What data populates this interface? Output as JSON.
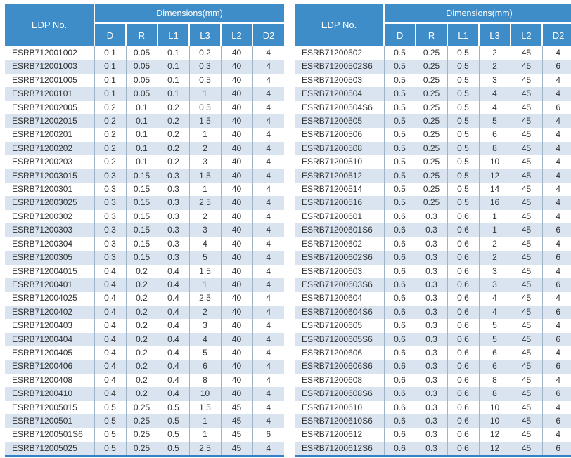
{
  "colors": {
    "header_bg": "#3E8CC8",
    "header_text": "#FFFFFF",
    "stripe": "#D9E4F0",
    "body_text": "#333333",
    "grid_line": "#9FB4C7",
    "bottom_border": "#3580C6"
  },
  "header": {
    "edp_label": "EDP No.",
    "group_label": "Dimensions(mm)",
    "sub": [
      "D",
      "R",
      "L1",
      "L3",
      "L2",
      "D2"
    ]
  },
  "tables": [
    {
      "rows": [
        [
          "ESRB712001002",
          "0.1",
          "0.05",
          "0.1",
          "0.2",
          "40",
          "4"
        ],
        [
          "ESRB712001003",
          "0.1",
          "0.05",
          "0.1",
          "0.3",
          "40",
          "4"
        ],
        [
          "ESRB712001005",
          "0.1",
          "0.05",
          "0.1",
          "0.5",
          "40",
          "4"
        ],
        [
          "ESRB71200101",
          "0.1",
          "0.05",
          "0.1",
          "1",
          "40",
          "4"
        ],
        [
          "ESRB712002005",
          "0.2",
          "0.1",
          "0.2",
          "0.5",
          "40",
          "4"
        ],
        [
          "ESRB712002015",
          "0.2",
          "0.1",
          "0.2",
          "1.5",
          "40",
          "4"
        ],
        [
          "ESRB71200201",
          "0.2",
          "0.1",
          "0.2",
          "1",
          "40",
          "4"
        ],
        [
          "ESRB71200202",
          "0.2",
          "0.1",
          "0.2",
          "2",
          "40",
          "4"
        ],
        [
          "ESRB71200203",
          "0.2",
          "0.1",
          "0.2",
          "3",
          "40",
          "4"
        ],
        [
          "ESRB712003015",
          "0.3",
          "0.15",
          "0.3",
          "1.5",
          "40",
          "4"
        ],
        [
          "ESRB71200301",
          "0.3",
          "0.15",
          "0.3",
          "1",
          "40",
          "4"
        ],
        [
          "ESRB712003025",
          "0.3",
          "0.15",
          "0.3",
          "2.5",
          "40",
          "4"
        ],
        [
          "ESRB71200302",
          "0.3",
          "0.15",
          "0.3",
          "2",
          "40",
          "4"
        ],
        [
          "ESRB71200303",
          "0.3",
          "0.15",
          "0.3",
          "3",
          "40",
          "4"
        ],
        [
          "ESRB71200304",
          "0.3",
          "0.15",
          "0.3",
          "4",
          "40",
          "4"
        ],
        [
          "ESRB71200305",
          "0.3",
          "0.15",
          "0.3",
          "5",
          "40",
          "4"
        ],
        [
          "ESRB712004015",
          "0.4",
          "0.2",
          "0.4",
          "1.5",
          "40",
          "4"
        ],
        [
          "ESRB71200401",
          "0.4",
          "0.2",
          "0.4",
          "1",
          "40",
          "4"
        ],
        [
          "ESRB712004025",
          "0.4",
          "0.2",
          "0.4",
          "2.5",
          "40",
          "4"
        ],
        [
          "ESRB71200402",
          "0.4",
          "0.2",
          "0.4",
          "2",
          "40",
          "4"
        ],
        [
          "ESRB71200403",
          "0.4",
          "0.2",
          "0.4",
          "3",
          "40",
          "4"
        ],
        [
          "ESRB71200404",
          "0.4",
          "0.2",
          "0.4",
          "4",
          "40",
          "4"
        ],
        [
          "ESRB71200405",
          "0.4",
          "0.2",
          "0.4",
          "5",
          "40",
          "4"
        ],
        [
          "ESRB71200406",
          "0.4",
          "0.2",
          "0.4",
          "6",
          "40",
          "4"
        ],
        [
          "ESRB71200408",
          "0.4",
          "0.2",
          "0.4",
          "8",
          "40",
          "4"
        ],
        [
          "ESRB71200410",
          "0.4",
          "0.2",
          "0.4",
          "10",
          "40",
          "4"
        ],
        [
          "ESRB712005015",
          "0.5",
          "0.25",
          "0.5",
          "1.5",
          "45",
          "4"
        ],
        [
          "ESRB71200501",
          "0.5",
          "0.25",
          "0.5",
          "1",
          "45",
          "4"
        ],
        [
          "ESRB71200501S6",
          "0.5",
          "0.25",
          "0.5",
          "1",
          "45",
          "6"
        ],
        [
          "ESRB712005025",
          "0.5",
          "0.25",
          "0.5",
          "2.5",
          "45",
          "4"
        ]
      ]
    },
    {
      "rows": [
        [
          "ESRB71200502",
          "0.5",
          "0.25",
          "0.5",
          "2",
          "45",
          "4"
        ],
        [
          "ESRB71200502S6",
          "0.5",
          "0.25",
          "0.5",
          "2",
          "45",
          "6"
        ],
        [
          "ESRB71200503",
          "0.5",
          "0.25",
          "0.5",
          "3",
          "45",
          "4"
        ],
        [
          "ESRB71200504",
          "0.5",
          "0.25",
          "0.5",
          "4",
          "45",
          "4"
        ],
        [
          "ESRB71200504S6",
          "0.5",
          "0.25",
          "0.5",
          "4",
          "45",
          "6"
        ],
        [
          "ESRB71200505",
          "0.5",
          "0.25",
          "0.5",
          "5",
          "45",
          "4"
        ],
        [
          "ESRB71200506",
          "0.5",
          "0.25",
          "0.5",
          "6",
          "45",
          "4"
        ],
        [
          "ESRB71200508",
          "0.5",
          "0.25",
          "0.5",
          "8",
          "45",
          "4"
        ],
        [
          "ESRB71200510",
          "0.5",
          "0.25",
          "0.5",
          "10",
          "45",
          "4"
        ],
        [
          "ESRB71200512",
          "0.5",
          "0.25",
          "0.5",
          "12",
          "45",
          "4"
        ],
        [
          "ESRB71200514",
          "0.5",
          "0.25",
          "0.5",
          "14",
          "45",
          "4"
        ],
        [
          "ESRB71200516",
          "0.5",
          "0.25",
          "0.5",
          "16",
          "45",
          "4"
        ],
        [
          "ESRB71200601",
          "0.6",
          "0.3",
          "0.6",
          "1",
          "45",
          "4"
        ],
        [
          "ESRB71200601S6",
          "0.6",
          "0.3",
          "0.6",
          "1",
          "45",
          "6"
        ],
        [
          "ESRB71200602",
          "0.6",
          "0.3",
          "0.6",
          "2",
          "45",
          "4"
        ],
        [
          "ESRB71200602S6",
          "0.6",
          "0.3",
          "0.6",
          "2",
          "45",
          "6"
        ],
        [
          "ESRB71200603",
          "0.6",
          "0.3",
          "0.6",
          "3",
          "45",
          "4"
        ],
        [
          "ESRB71200603S6",
          "0.6",
          "0.3",
          "0.6",
          "3",
          "45",
          "6"
        ],
        [
          "ESRB71200604",
          "0.6",
          "0.3",
          "0.6",
          "4",
          "45",
          "4"
        ],
        [
          "ESRB71200604S6",
          "0.6",
          "0.3",
          "0.6",
          "4",
          "45",
          "6"
        ],
        [
          "ESRB71200605",
          "0.6",
          "0.3",
          "0.6",
          "5",
          "45",
          "4"
        ],
        [
          "ESRB71200605S6",
          "0.6",
          "0.3",
          "0.6",
          "5",
          "45",
          "6"
        ],
        [
          "ESRB71200606",
          "0.6",
          "0.3",
          "0.6",
          "6",
          "45",
          "4"
        ],
        [
          "ESRB71200606S6",
          "0.6",
          "0.3",
          "0.6",
          "6",
          "45",
          "6"
        ],
        [
          "ESRB71200608",
          "0.6",
          "0.3",
          "0.6",
          "8",
          "45",
          "4"
        ],
        [
          "ESRB71200608S6",
          "0.6",
          "0.3",
          "0.6",
          "8",
          "45",
          "6"
        ],
        [
          "ESRB71200610",
          "0.6",
          "0.3",
          "0.6",
          "10",
          "45",
          "4"
        ],
        [
          "ESRB71200610S6",
          "0.6",
          "0.3",
          "0.6",
          "10",
          "45",
          "6"
        ],
        [
          "ESRB71200612",
          "0.6",
          "0.3",
          "0.6",
          "12",
          "45",
          "4"
        ],
        [
          "ESRB71200612S6",
          "0.6",
          "0.3",
          "0.6",
          "12",
          "45",
          "6"
        ]
      ]
    }
  ]
}
